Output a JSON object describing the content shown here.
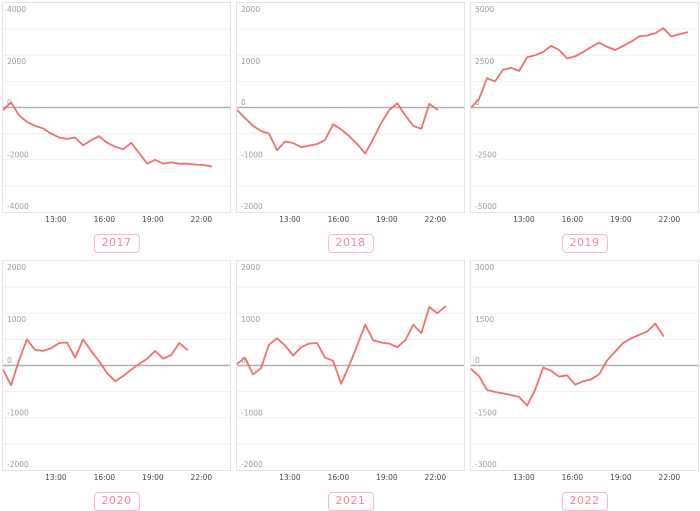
{
  "style": {
    "line_color": "#f3706a",
    "grid_color": "#efefef",
    "zero_line_color": "#b0b0b0",
    "plot_border_color": "#e4e4e4",
    "y_label_color": "#9b9b9b",
    "x_label_color": "#4a4a4a",
    "badge_text_color": "#f2849e",
    "badge_border_color": "#f8b7c7"
  },
  "chart_data": [
    {
      "type": "line",
      "label": "2017",
      "x_domain": [
        "09:40",
        "23:50"
      ],
      "x_ticks": [
        "13:00",
        "16:00",
        "19:00",
        "22:00"
      ],
      "y_ticks": [
        4000,
        2000,
        0,
        -2000,
        -4000
      ],
      "ylim": [
        -4000,
        4000
      ],
      "grid_step": 1000,
      "times": [
        "09:40",
        "10:10",
        "10:40",
        "11:10",
        "11:40",
        "12:10",
        "12:40",
        "13:10",
        "13:40",
        "14:10",
        "14:40",
        "15:10",
        "15:40",
        "16:10",
        "16:40",
        "17:10",
        "17:40",
        "18:10",
        "18:40",
        "19:10",
        "19:40",
        "20:10",
        "20:40",
        "21:10",
        "21:40",
        "22:10",
        "22:40"
      ],
      "values": [
        -100,
        200,
        -300,
        -550,
        -700,
        -800,
        -1000,
        -1150,
        -1200,
        -1150,
        -1450,
        -1250,
        -1100,
        -1350,
        -1500,
        -1600,
        -1350,
        -1750,
        -2150,
        -2000,
        -2150,
        -2100,
        -2150,
        -2150,
        -2180,
        -2200,
        -2250
      ]
    },
    {
      "type": "line",
      "label": "2018",
      "x_domain": [
        "09:40",
        "23:50"
      ],
      "x_ticks": [
        "13:00",
        "16:00",
        "19:00",
        "22:00"
      ],
      "y_ticks": [
        2000,
        1000,
        0,
        -1000,
        -2000
      ],
      "ylim": [
        -2000,
        2000
      ],
      "grid_step": 500,
      "times": [
        "09:40",
        "10:10",
        "10:40",
        "11:10",
        "11:40",
        "12:10",
        "12:40",
        "13:10",
        "13:40",
        "14:10",
        "14:40",
        "15:10",
        "15:40",
        "16:10",
        "16:40",
        "17:10",
        "17:40",
        "18:10",
        "18:40",
        "19:10",
        "19:40",
        "20:10",
        "20:40",
        "21:10",
        "21:40",
        "22:10"
      ],
      "values": [
        -50,
        -200,
        -350,
        -450,
        -500,
        -820,
        -650,
        -680,
        -760,
        -730,
        -700,
        -620,
        -320,
        -420,
        -550,
        -700,
        -880,
        -600,
        -300,
        -50,
        80,
        -150,
        -350,
        -410,
        70,
        -40
      ]
    },
    {
      "type": "line",
      "label": "2019",
      "x_domain": [
        "09:40",
        "23:50"
      ],
      "x_ticks": [
        "13:00",
        "16:00",
        "19:00",
        "22:00"
      ],
      "y_ticks": [
        5000,
        2500,
        0,
        -2500,
        -5000
      ],
      "ylim": [
        -5000,
        5000
      ],
      "grid_step": 1250,
      "times": [
        "09:40",
        "10:10",
        "10:40",
        "11:10",
        "11:40",
        "12:10",
        "12:40",
        "13:10",
        "13:40",
        "14:10",
        "14:40",
        "15:10",
        "15:40",
        "16:10",
        "16:40",
        "17:10",
        "17:40",
        "18:10",
        "18:40",
        "19:10",
        "19:40",
        "20:10",
        "20:40",
        "21:10",
        "21:40",
        "22:10",
        "22:40",
        "23:10"
      ],
      "values": [
        0,
        400,
        1400,
        1250,
        1800,
        1900,
        1750,
        2400,
        2500,
        2650,
        2950,
        2750,
        2350,
        2450,
        2650,
        2900,
        3100,
        2900,
        2750,
        2950,
        3150,
        3400,
        3450,
        3550,
        3800,
        3400,
        3500,
        3600
      ]
    },
    {
      "type": "line",
      "label": "2020",
      "x_domain": [
        "09:40",
        "23:50"
      ],
      "x_ticks": [
        "13:00",
        "16:00",
        "19:00",
        "22:00"
      ],
      "y_ticks": [
        2000,
        1000,
        0,
        -1000,
        -2000
      ],
      "ylim": [
        -2000,
        2000
      ],
      "grid_step": 500,
      "times": [
        "09:40",
        "10:10",
        "10:40",
        "11:10",
        "11:40",
        "12:10",
        "12:40",
        "13:10",
        "13:40",
        "14:10",
        "14:40",
        "15:10",
        "15:40",
        "16:10",
        "16:40",
        "17:10",
        "17:40",
        "18:10",
        "18:40",
        "19:10",
        "19:40",
        "20:10",
        "20:40",
        "21:10"
      ],
      "values": [
        -80,
        -380,
        100,
        500,
        300,
        280,
        330,
        430,
        440,
        150,
        500,
        280,
        80,
        -150,
        -300,
        -200,
        -80,
        30,
        130,
        280,
        130,
        200,
        430,
        300
      ]
    },
    {
      "type": "line",
      "label": "2021",
      "x_domain": [
        "09:40",
        "23:50"
      ],
      "x_ticks": [
        "13:00",
        "16:00",
        "19:00",
        "22:00"
      ],
      "y_ticks": [
        2000,
        1000,
        0,
        -1000,
        -2000
      ],
      "ylim": [
        -2000,
        2000
      ],
      "grid_step": 500,
      "times": [
        "09:40",
        "10:10",
        "10:40",
        "11:10",
        "11:40",
        "12:10",
        "12:40",
        "13:10",
        "13:40",
        "14:10",
        "14:40",
        "15:10",
        "15:40",
        "16:10",
        "16:40",
        "17:10",
        "17:40",
        "18:10",
        "18:40",
        "19:10",
        "19:40",
        "20:10",
        "20:40",
        "21:10",
        "21:40",
        "22:10",
        "22:40"
      ],
      "values": [
        30,
        150,
        -170,
        -50,
        400,
        520,
        380,
        190,
        350,
        420,
        430,
        150,
        90,
        -350,
        0,
        380,
        780,
        480,
        440,
        420,
        350,
        480,
        780,
        620,
        1120,
        1000,
        1130
      ]
    },
    {
      "type": "line",
      "label": "2022",
      "x_domain": [
        "09:40",
        "23:50"
      ],
      "x_ticks": [
        "13:00",
        "16:00",
        "19:00",
        "22:00"
      ],
      "y_ticks": [
        3000,
        1500,
        0,
        -1500,
        -3000
      ],
      "ylim": [
        -3000,
        3000
      ],
      "grid_step": 750,
      "times": [
        "09:40",
        "10:10",
        "10:40",
        "11:10",
        "11:40",
        "12:10",
        "12:40",
        "13:10",
        "13:40",
        "14:10",
        "14:40",
        "15:10",
        "15:40",
        "16:10",
        "16:40",
        "17:10",
        "17:40",
        "18:10",
        "18:40",
        "19:10",
        "19:40",
        "20:10",
        "20:40",
        "21:10",
        "21:40"
      ],
      "values": [
        -100,
        -300,
        -700,
        -760,
        -800,
        -850,
        -900,
        -1150,
        -700,
        -60,
        -150,
        -320,
        -280,
        -550,
        -450,
        -400,
        -250,
        150,
        400,
        650,
        780,
        880,
        980,
        1200,
        850
      ]
    }
  ]
}
